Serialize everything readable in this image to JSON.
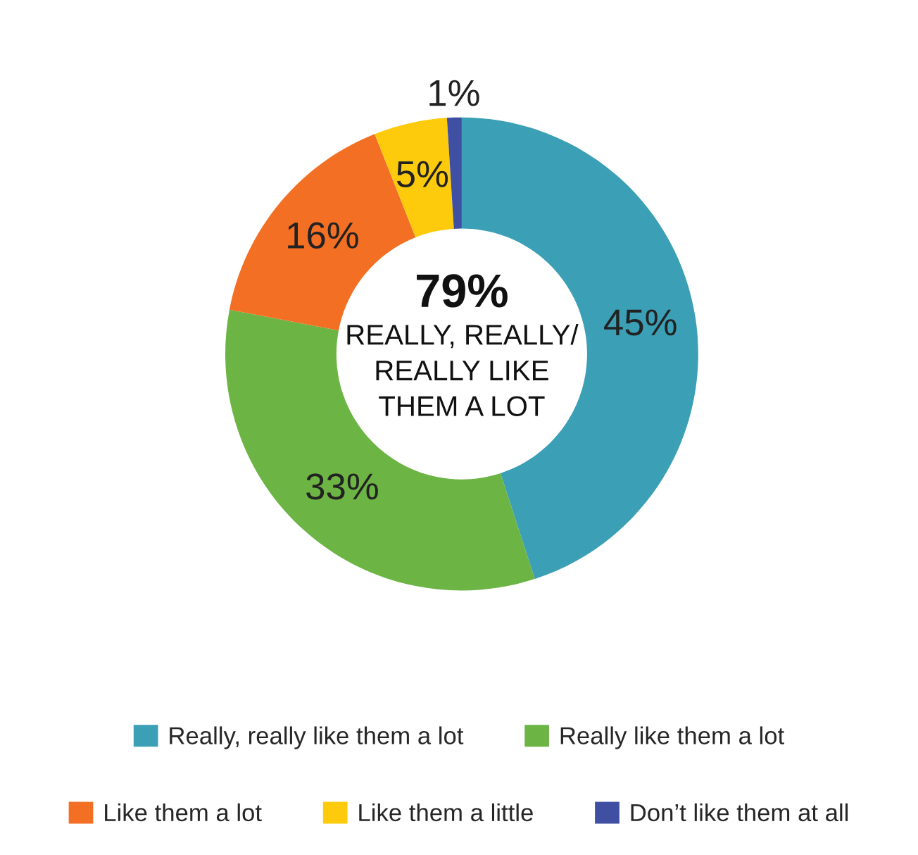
{
  "chart_data": {
    "type": "donut",
    "categories": [
      "Really, really like them a lot",
      "Really like them a lot",
      "Like them a lot",
      "Like them a little",
      "Don’t like them at all"
    ],
    "values": [
      45,
      33,
      16,
      5,
      1
    ],
    "colors": [
      "#3b9fb5",
      "#6cb444",
      "#f36f24",
      "#fdcb0b",
      "#3f4fa1"
    ],
    "value_labels": [
      "45%",
      "33%",
      "16%",
      "5%",
      "1%"
    ],
    "annotations": [
      "79%",
      "REALLY, REALLY/\nREALLY LIKE\nTHEM A LOT"
    ],
    "legend": "bottom"
  }
}
